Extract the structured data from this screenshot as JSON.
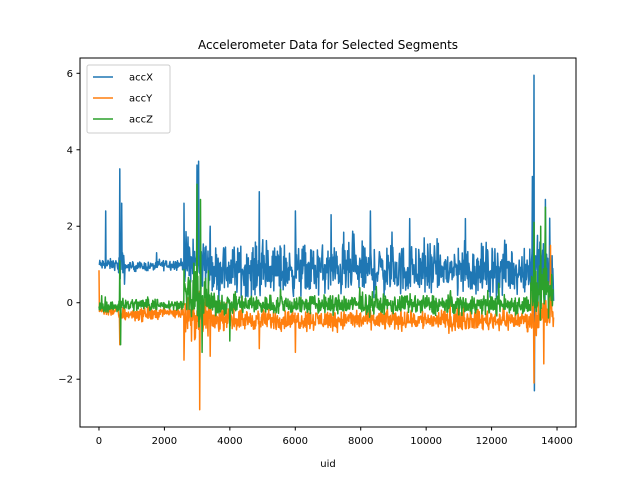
{
  "chart_data": {
    "type": "line",
    "title": "Accelerometer Data for Selected Segments",
    "xlabel": "uid",
    "ylabel": "",
    "xlim": [
      -580,
      14580
    ],
    "ylim": [
      -3.25,
      6.4
    ],
    "xticks": [
      0,
      2000,
      4000,
      6000,
      8000,
      10000,
      12000,
      14000
    ],
    "yticks": [
      -2,
      0,
      2,
      4,
      6
    ],
    "ytick_labels": [
      "−2",
      "0",
      "2",
      "4",
      "6"
    ],
    "legend_position": "top-left",
    "series": [
      {
        "name": "accX",
        "color": "#1f77b4",
        "segments": [
          {
            "x": [
              0,
              600
            ],
            "base": 1.0,
            "noise": 0.12
          },
          {
            "x": [
              600,
              800
            ],
            "base": 0.9,
            "noise": 0.35
          },
          {
            "x": [
              800,
              1800
            ],
            "base": 0.95,
            "noise": 0.1
          },
          {
            "x": [
              1800,
              2600
            ],
            "base": 1.0,
            "noise": 0.12
          },
          {
            "x": [
              2600,
              3400
            ],
            "base": 1.0,
            "noise": 0.6
          },
          {
            "x": [
              3400,
              13200
            ],
            "base": 0.85,
            "noise": 0.55
          },
          {
            "x": [
              13200,
              13900
            ],
            "base": 0.9,
            "noise": 0.7
          }
        ],
        "spikes": [
          {
            "x": 200,
            "y": 2.4
          },
          {
            "x": 640,
            "y": 3.5
          },
          {
            "x": 700,
            "y": 2.6
          },
          {
            "x": 2600,
            "y": 2.6
          },
          {
            "x": 3000,
            "y": 3.6
          },
          {
            "x": 3050,
            "y": 3.7
          },
          {
            "x": 3400,
            "y": 2.0
          },
          {
            "x": 4900,
            "y": 2.9
          },
          {
            "x": 6000,
            "y": 2.4
          },
          {
            "x": 7100,
            "y": 2.3
          },
          {
            "x": 8300,
            "y": 2.4
          },
          {
            "x": 9500,
            "y": 2.2
          },
          {
            "x": 11200,
            "y": 2.2
          },
          {
            "x": 13300,
            "y": 5.95
          },
          {
            "x": 13250,
            "y": 3.3
          },
          {
            "x": 13300,
            "y": -2.3
          },
          {
            "x": 13650,
            "y": 2.7
          }
        ]
      },
      {
        "name": "accY",
        "color": "#ff7f0e",
        "segments": [
          {
            "x": [
              0,
              600
            ],
            "base": -0.2,
            "noise": 0.12
          },
          {
            "x": [
              600,
              1800
            ],
            "base": -0.3,
            "noise": 0.15
          },
          {
            "x": [
              1800,
              2600
            ],
            "base": -0.25,
            "noise": 0.12
          },
          {
            "x": [
              2600,
              3400
            ],
            "base": -0.4,
            "noise": 0.5
          },
          {
            "x": [
              3400,
              13200
            ],
            "base": -0.45,
            "noise": 0.22
          },
          {
            "x": [
              13200,
              13900
            ],
            "base": -0.3,
            "noise": 0.45
          }
        ],
        "spikes": [
          {
            "x": 0,
            "y": 0.85
          },
          {
            "x": 640,
            "y": -1.1
          },
          {
            "x": 2600,
            "y": -1.5
          },
          {
            "x": 3080,
            "y": -2.8
          },
          {
            "x": 3400,
            "y": -1.4
          },
          {
            "x": 4900,
            "y": -1.2
          },
          {
            "x": 6000,
            "y": -1.3
          },
          {
            "x": 13300,
            "y": -2.1
          },
          {
            "x": 13600,
            "y": -1.6
          },
          {
            "x": 13800,
            "y": 1.5
          }
        ]
      },
      {
        "name": "accZ",
        "color": "#2ca02c",
        "segments": [
          {
            "x": [
              0,
              600
            ],
            "base": -0.1,
            "noise": 0.12
          },
          {
            "x": [
              600,
              1800
            ],
            "base": -0.05,
            "noise": 0.15
          },
          {
            "x": [
              1800,
              2600
            ],
            "base": -0.05,
            "noise": 0.1
          },
          {
            "x": [
              2600,
              3400
            ],
            "base": 0.1,
            "noise": 0.55
          },
          {
            "x": [
              3400,
              13200
            ],
            "base": -0.05,
            "noise": 0.22
          },
          {
            "x": [
              13200,
              13900
            ],
            "base": 0.2,
            "noise": 0.55
          }
        ],
        "spikes": [
          {
            "x": 640,
            "y": 1.1
          },
          {
            "x": 660,
            "y": -1.1
          },
          {
            "x": 3000,
            "y": 3.1
          },
          {
            "x": 3100,
            "y": 2.7
          },
          {
            "x": 3150,
            "y": -1.3
          },
          {
            "x": 4000,
            "y": -1.0
          },
          {
            "x": 13300,
            "y": 2.1
          },
          {
            "x": 13500,
            "y": 2.0
          },
          {
            "x": 13650,
            "y": 2.5
          }
        ]
      }
    ]
  }
}
